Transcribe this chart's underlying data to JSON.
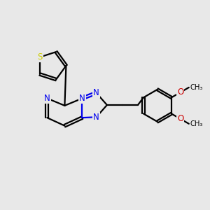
{
  "bg_color": "#e8e8e8",
  "bond_color": "#000000",
  "N_color": "#0000ee",
  "S_color": "#cccc00",
  "O_color": "#cc0000",
  "line_width": 1.6,
  "figsize": [
    3.0,
    3.0
  ],
  "dpi": 100,
  "xlim": [
    0,
    10
  ],
  "ylim": [
    0,
    10
  ]
}
